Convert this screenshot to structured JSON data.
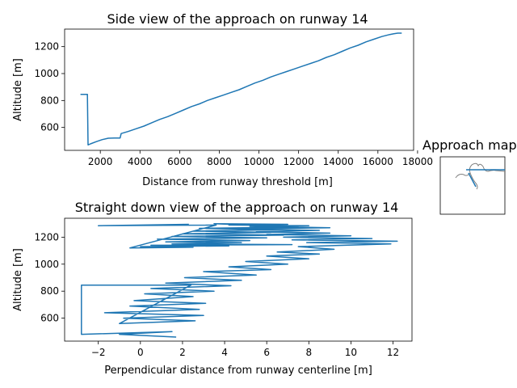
{
  "chart_data": [
    {
      "type": "line",
      "title": "Side view of the approach on runway 14",
      "xlabel": "Distance from runway threshold [m]",
      "ylabel": "Altitude [m]",
      "xlim": [
        200,
        17800
      ],
      "ylim": [
        430,
        1330
      ],
      "xticks": [
        2000,
        4000,
        6000,
        8000,
        10000,
        12000,
        14000,
        16000,
        18000
      ],
      "yticks": [
        600,
        800,
        1000,
        1200
      ],
      "series": [
        {
          "x": [
            1000,
            1300,
            1350,
            1380,
            1500,
            1800,
            2100,
            2400,
            2700,
            3000,
            3050,
            3400,
            3800,
            4200,
            4600,
            5000,
            5400,
            5800,
            6200,
            6600,
            7000,
            7400,
            7800,
            8200,
            8600,
            9000,
            9400,
            9800,
            10200,
            10600,
            11000,
            11400,
            11800,
            12200,
            12600,
            13000,
            13400,
            13800,
            14200,
            14600,
            15000,
            15400,
            15800,
            16200,
            16600,
            16800,
            17000,
            17200
          ],
          "y": [
            845,
            845,
            845,
            470,
            478,
            495,
            510,
            520,
            522,
            522,
            555,
            570,
            590,
            610,
            635,
            660,
            680,
            705,
            730,
            755,
            775,
            800,
            820,
            840,
            860,
            880,
            905,
            930,
            950,
            975,
            995,
            1015,
            1035,
            1055,
            1075,
            1095,
            1120,
            1140,
            1165,
            1190,
            1210,
            1235,
            1255,
            1275,
            1290,
            1295,
            1300,
            1300
          ]
        }
      ]
    },
    {
      "type": "line",
      "title": "Straight down view of the approach on runway 14",
      "xlabel": "Perpendicular distance from runway centerline [m]",
      "ylabel": "Altitude [m]",
      "xlim": [
        -3.6,
        12.9
      ],
      "ylim": [
        430,
        1340
      ],
      "xticks": [
        -2,
        0,
        2,
        4,
        6,
        8,
        10,
        12
      ],
      "yticks": [
        600,
        800,
        1000,
        1200
      ],
      "series": [
        {
          "x": [
            1.7,
            -1.0,
            1.5,
            -2.8,
            -2.8,
            2.4,
            -1.0,
            2.6,
            -0.8,
            3.0,
            -1.7,
            2.8,
            -0.5,
            3.1,
            -0.3,
            2.5,
            0.2,
            3.5,
            0.5,
            4.3,
            1.2,
            4.8,
            2.1,
            5.5,
            3.0,
            6.2,
            4.2,
            7.0,
            5.0,
            8.0,
            6.0,
            8.5,
            6.5,
            9.2,
            7.5,
            11.9,
            7.9,
            12.2,
            7.2,
            11.0,
            6.8,
            10.0,
            6.0,
            9.0,
            5.5,
            8.5,
            4.5,
            9.0,
            5.2,
            8.0,
            4.2,
            7.0,
            3.5,
            7.5,
            2.8,
            6.5,
            2.5,
            6.2,
            2.0,
            6.8,
            1.5,
            6.0,
            0.8,
            5.2,
            1.2,
            4.8,
            1.5,
            7.2,
            0.5,
            4.2,
            0.0,
            2.5,
            -0.5,
            3.6,
            -2.0,
            2.3
          ],
          "y": [
            460,
            480,
            500,
            480,
            845,
            845,
            560,
            580,
            600,
            620,
            640,
            665,
            690,
            710,
            730,
            760,
            780,
            800,
            820,
            840,
            860,
            880,
            900,
            920,
            945,
            960,
            980,
            1000,
            1020,
            1040,
            1060,
            1075,
            1090,
            1110,
            1130,
            1150,
            1160,
            1170,
            1180,
            1190,
            1200,
            1210,
            1220,
            1230,
            1240,
            1250,
            1260,
            1270,
            1280,
            1285,
            1290,
            1295,
            1300,
            1275,
            1265,
            1255,
            1245,
            1235,
            1225,
            1215,
            1205,
            1195,
            1185,
            1175,
            1165,
            1160,
            1150,
            1145,
            1140,
            1135,
            1130,
            1125,
            1120,
            1290,
            1285,
            1295
          ]
        }
      ]
    }
  ],
  "inset": {
    "title": "Approach map"
  }
}
